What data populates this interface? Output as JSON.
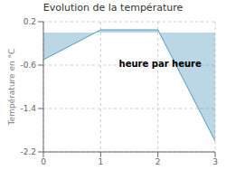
{
  "chart_data": {
    "type": "area",
    "title": "Evolution de la température",
    "y_label": "Température en °C",
    "annotations": [
      "heure par heure"
    ],
    "x": [
      0,
      1,
      2,
      3
    ],
    "values": [
      -0.5,
      0.05,
      0.05,
      -2.0
    ],
    "color": "#5599bb",
    "xlim": [
      0,
      3
    ],
    "ylim": [
      -2.2,
      0.2
    ],
    "xticks": [
      0,
      1,
      2,
      3
    ],
    "yticks": [
      0.2,
      -0.6,
      -1.4,
      -2.2
    ],
    "grid": true
  }
}
